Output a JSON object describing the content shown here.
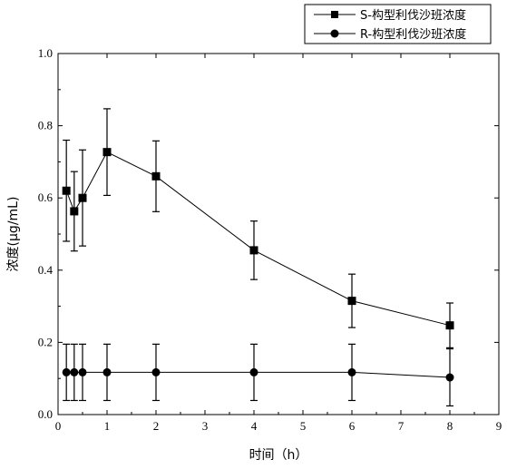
{
  "chart_data": {
    "type": "line",
    "xlabel": "时间（h）",
    "ylabel": "浓度(μg/mL)",
    "xlim": [
      0,
      9
    ],
    "ylim": [
      0.0,
      1.0
    ],
    "x_ticks": [
      "0",
      "1",
      "2",
      "3",
      "4",
      "5",
      "6",
      "7",
      "8",
      "9"
    ],
    "y_ticks": [
      "0.0",
      "0.2",
      "0.4",
      "0.6",
      "0.8",
      "1.0"
    ],
    "legend_position": "top-right",
    "series": [
      {
        "name": "S-构型利伐沙班浓度",
        "marker": "square",
        "x": [
          0.17,
          0.33,
          0.5,
          1,
          2,
          4,
          6,
          8
        ],
        "y": [
          0.62,
          0.563,
          0.6,
          0.727,
          0.66,
          0.455,
          0.315,
          0.247
        ],
        "err": [
          0.14,
          0.11,
          0.133,
          0.12,
          0.098,
          0.081,
          0.074,
          0.062
        ]
      },
      {
        "name": "R-构型利伐沙班浓度",
        "marker": "circle",
        "x": [
          0.17,
          0.33,
          0.5,
          1,
          2,
          4,
          6,
          8
        ],
        "y": [
          0.117,
          0.117,
          0.117,
          0.117,
          0.117,
          0.117,
          0.117,
          0.103
        ],
        "err": [
          0.078,
          0.078,
          0.078,
          0.078,
          0.078,
          0.078,
          0.078,
          0.079
        ]
      }
    ]
  }
}
